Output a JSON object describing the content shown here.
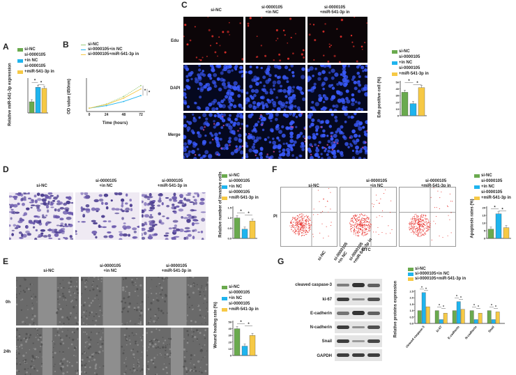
{
  "colors": {
    "siNC": "#6aaa4e",
    "inNC": "#1fb4ee",
    "mir": "#f6c945",
    "edu_bg": "#0c0508",
    "dapi_bg": "#05081f",
    "nucleus": "#3a5bff",
    "flow": "#e8312c"
  },
  "panels": {
    "A": "A",
    "B": "B",
    "C": "C",
    "D": "D",
    "E": "E",
    "F": "F",
    "G": "G"
  },
  "legend": {
    "si_nc": "si-NC",
    "si_0000105_l1": "si-0000105",
    "in_nc_l2": "+in NC",
    "mir_l2": "+miR-541-3p in",
    "si_0000105_in_nc": "si-0000105+in NC",
    "si_0000105_mir": "si-0000105+miR-541-3p in"
  },
  "labels": {
    "col_si_nc": "si-NC",
    "col_mid_l1": "si-0000105",
    "col_mid_l2": "+in NC",
    "col_right_l1": "si-0000105",
    "col_right_l2": "+miR-541-3p in",
    "edu": "Edu",
    "dapi": "DAPI",
    "merge": "Merge",
    "h0": "0h",
    "h24": "24h",
    "fitc": "FITC",
    "pi": "PI",
    "star": "*"
  },
  "wb": {
    "lanes": [
      "si-NC",
      "si-0000105\n+in NC",
      "si-0000105\n+miR-541-3p in"
    ],
    "rows": [
      "cleaved caspase-3",
      "ki-67",
      "E-cadherin",
      "N-cadherin",
      "Snail",
      "GAPDH"
    ]
  },
  "chart_data": [
    {
      "panel": "A",
      "type": "bar",
      "ylabel": "Relative miR-541-3p expression",
      "categories": [
        "si-NC",
        "si-0000105+in NC",
        "si-0000105+miR-541-3p in"
      ],
      "values": [
        1.0,
        2.3,
        2.2
      ],
      "ylim": [
        0,
        3
      ]
    },
    {
      "panel": "B",
      "type": "line",
      "xlabel": "Time (hours)",
      "ylabel": "OD value (450nm)",
      "x": [
        0,
        24,
        48,
        72
      ],
      "xticks": [
        "0",
        "24",
        "48",
        "72"
      ],
      "series": [
        {
          "name": "si-NC",
          "values": [
            0.2,
            0.45,
            0.9,
            1.55
          ]
        },
        {
          "name": "si-0000105+in NC",
          "values": [
            0.2,
            0.35,
            0.6,
            0.95
          ]
        },
        {
          "name": "si-0000105+miR-541-3p in",
          "values": [
            0.2,
            0.42,
            0.8,
            1.35
          ]
        }
      ],
      "ylim": [
        0,
        2
      ]
    },
    {
      "panel": "C",
      "type": "bar",
      "ylabel": "Edu positive cell (%)",
      "yticks": [
        "0",
        "10",
        "20",
        "30",
        "40",
        "50"
      ],
      "categories": [
        "si-NC",
        "si-0000105+in NC",
        "si-0000105+miR-541-3p in"
      ],
      "values": [
        35,
        18,
        42
      ],
      "ylim": [
        0,
        50
      ]
    },
    {
      "panel": "D",
      "type": "bar",
      "ylabel": "Relative number of invasive cells",
      "yticks": [
        "0.0",
        "0.5",
        "1.0",
        "1.5"
      ],
      "categories": [
        "si-NC",
        "si-0000105+in NC",
        "si-0000105+miR-541-3p in"
      ],
      "values": [
        1.0,
        0.45,
        0.85
      ],
      "ylim": [
        0,
        1.5
      ]
    },
    {
      "panel": "E",
      "type": "bar",
      "ylabel": "Wound healing rate (%)",
      "yticks": [
        "0",
        "10",
        "20",
        "30",
        "40",
        "50"
      ],
      "categories": [
        "si-NC",
        "si-0000105+in NC",
        "si-0000105+miR-541-3p in"
      ],
      "values": [
        40,
        14,
        30
      ],
      "ylim": [
        0,
        50
      ]
    },
    {
      "panel": "F",
      "type": "bar",
      "ylabel": "Apoptosis rates (%)",
      "yticks": [
        "0",
        "5",
        "10",
        "15",
        "20"
      ],
      "categories": [
        "si-NC",
        "si-0000105+in NC",
        "si-0000105+miR-541-3p in"
      ],
      "values": [
        6,
        16,
        7
      ],
      "ylim": [
        0,
        20
      ]
    },
    {
      "panel": "G",
      "type": "bar",
      "ylabel": "Relative proteins expression",
      "yticks": [
        "0.0",
        "0.5",
        "1.0",
        "1.5",
        "2.0",
        "2.5"
      ],
      "categories": [
        "cleaved caspase-3",
        "ki-67",
        "E-cadherin",
        "N-cadherin",
        "Snail"
      ],
      "series": [
        {
          "name": "si-NC",
          "values": [
            1.0,
            1.0,
            1.0,
            1.0,
            1.0
          ]
        },
        {
          "name": "si-0000105+in NC",
          "values": [
            2.4,
            0.3,
            1.7,
            0.3,
            0.3
          ]
        },
        {
          "name": "si-0000105+miR-541-3p in",
          "values": [
            1.3,
            0.8,
            1.1,
            0.8,
            0.9
          ]
        }
      ],
      "ylim": [
        0,
        2.5
      ]
    }
  ]
}
